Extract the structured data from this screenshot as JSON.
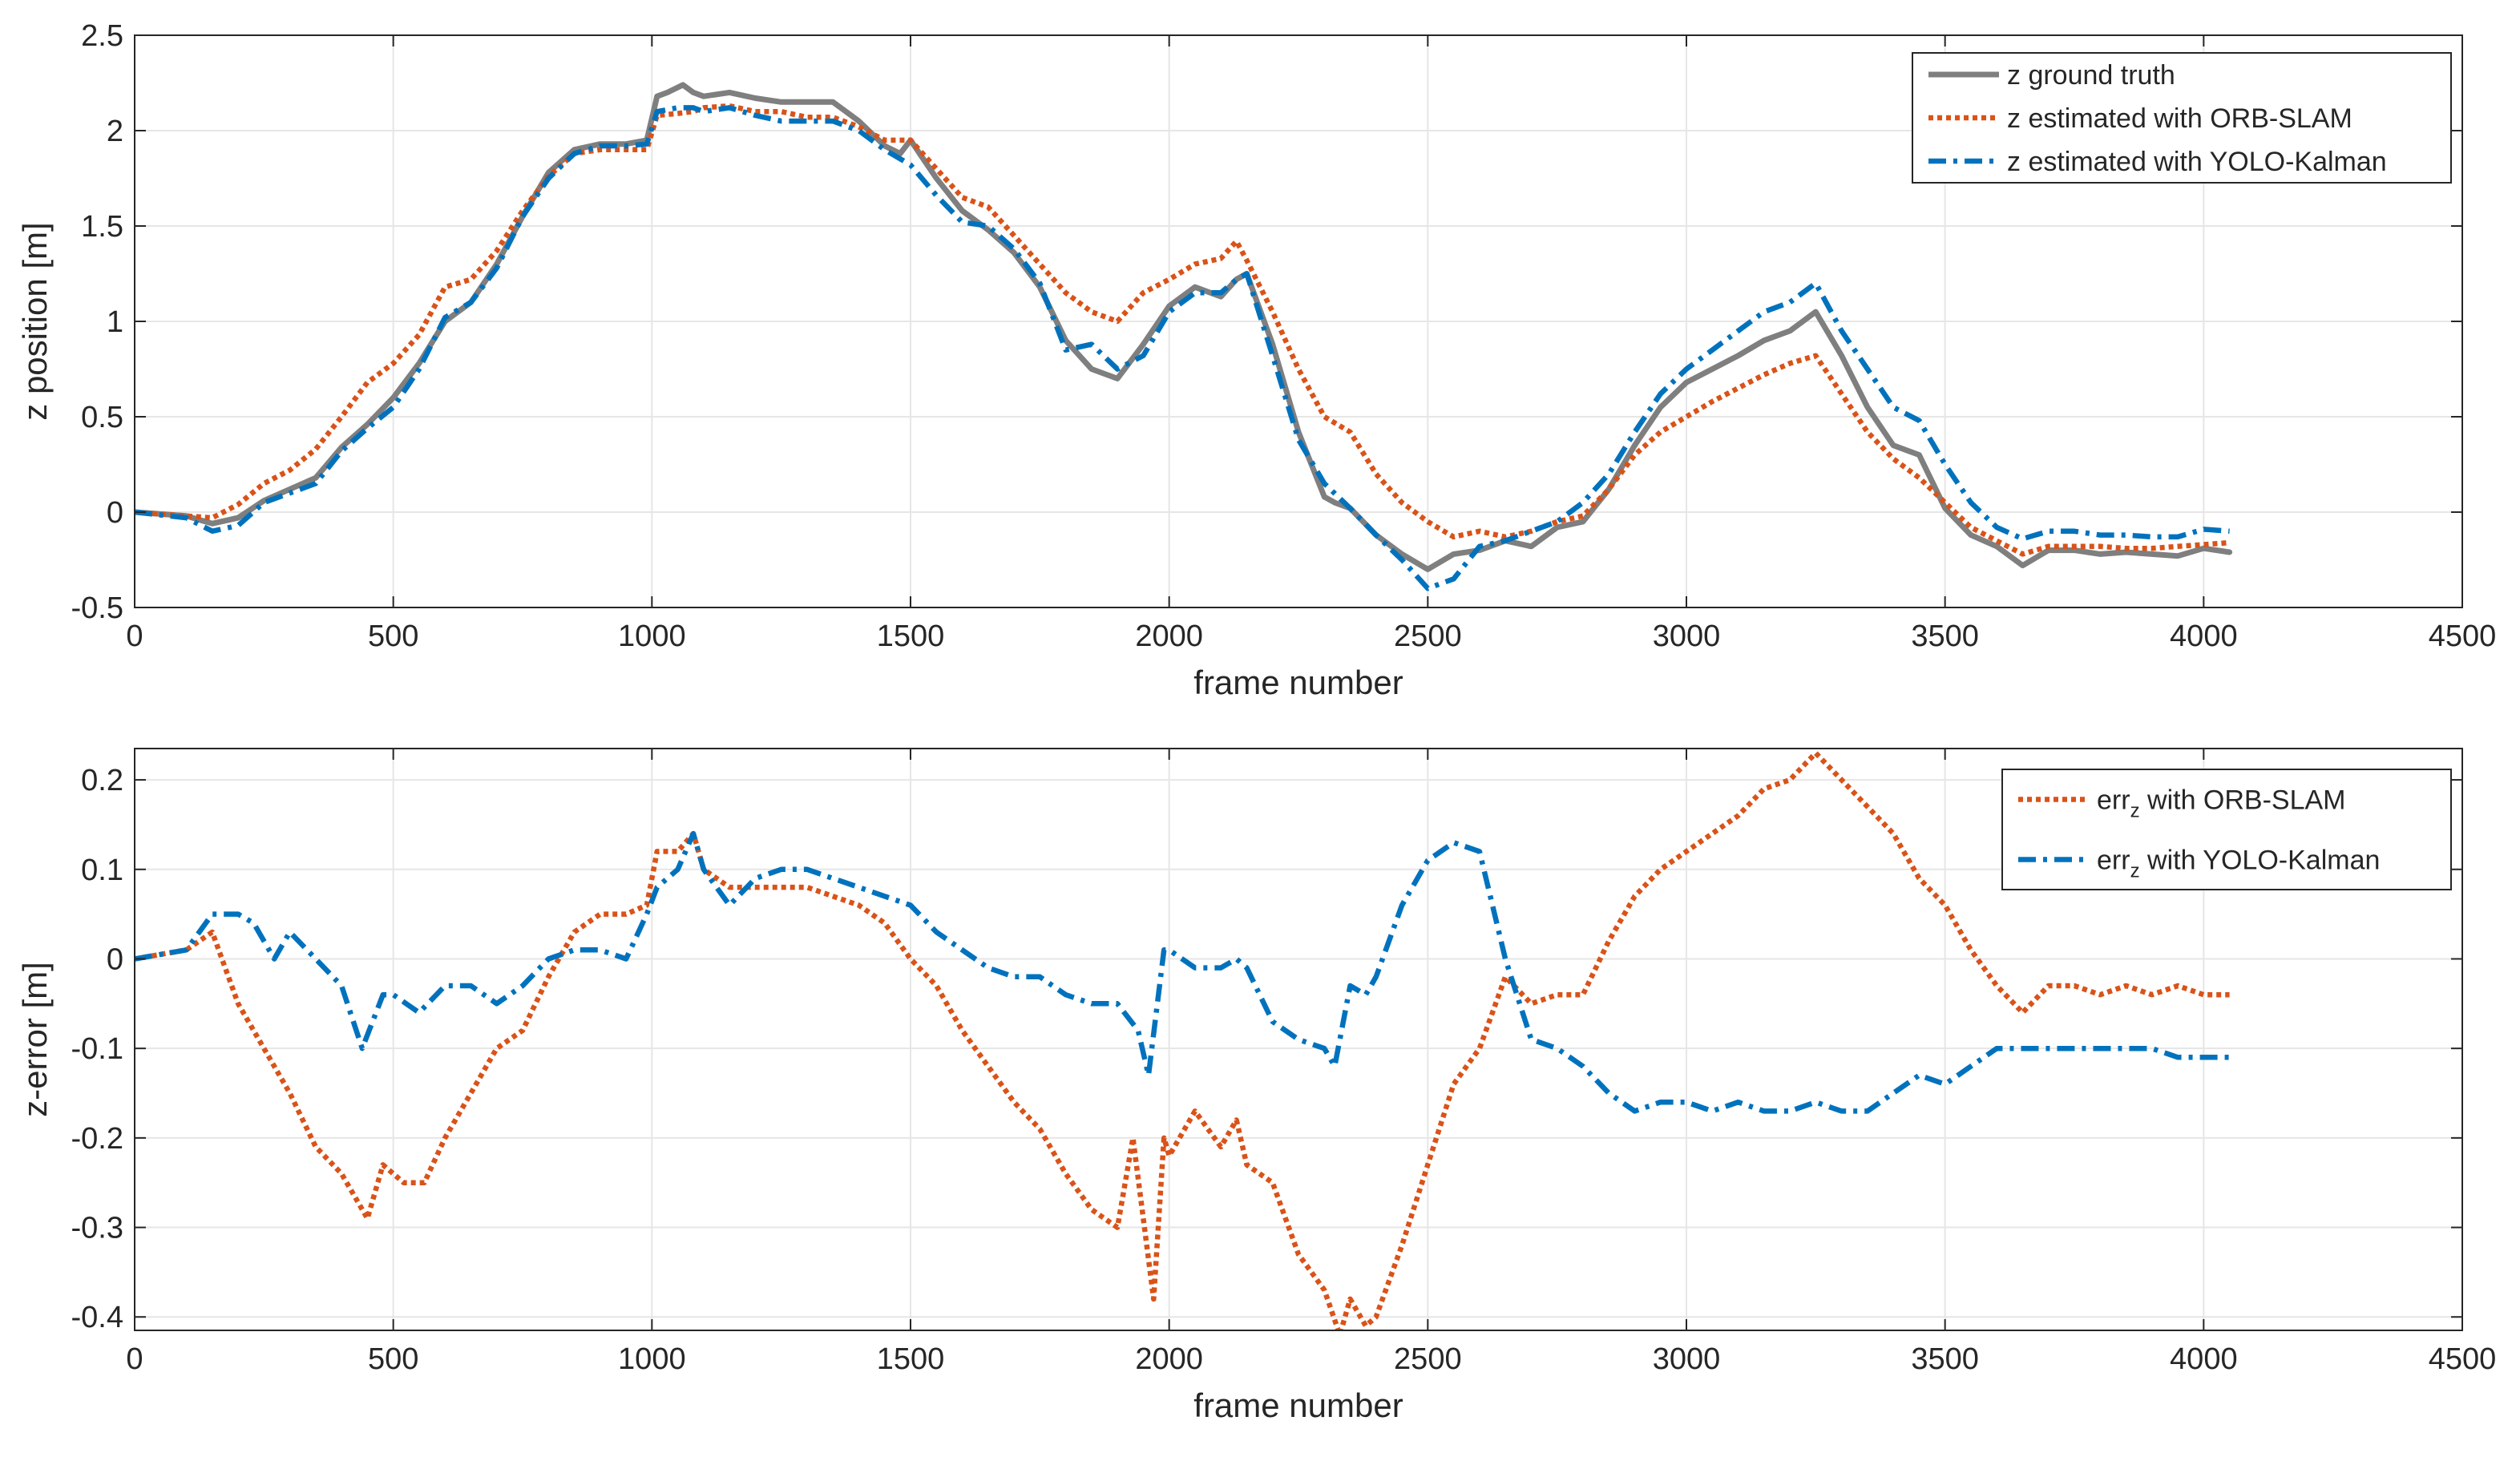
{
  "chart_data": [
    {
      "type": "line",
      "xlabel": "frame number",
      "ylabel": "z position [m]",
      "xlim": [
        0,
        4500
      ],
      "ylim": [
        -0.5,
        2.5
      ],
      "xticks": [
        0,
        500,
        1000,
        1500,
        2000,
        2500,
        3000,
        3500,
        4000,
        4500
      ],
      "yticks": [
        -0.5,
        0,
        0.5,
        1,
        1.5,
        2,
        2.5
      ],
      "grid": true,
      "legend_position": "top-right",
      "series": [
        {
          "name": "z ground truth",
          "color": "#7f7f7f",
          "style": "solid",
          "x": [
            0,
            100,
            150,
            200,
            250,
            300,
            350,
            400,
            450,
            500,
            550,
            600,
            650,
            700,
            750,
            800,
            850,
            900,
            950,
            990,
            1010,
            1030,
            1060,
            1080,
            1100,
            1150,
            1200,
            1250,
            1300,
            1350,
            1400,
            1450,
            1480,
            1500,
            1550,
            1600,
            1650,
            1700,
            1750,
            1800,
            1850,
            1900,
            1950,
            2000,
            2050,
            2100,
            2130,
            2150,
            2200,
            2250,
            2300,
            2320,
            2350,
            2400,
            2450,
            2500,
            2550,
            2600,
            2650,
            2700,
            2750,
            2800,
            2850,
            2900,
            2950,
            3000,
            3050,
            3100,
            3150,
            3200,
            3250,
            3300,
            3350,
            3400,
            3450,
            3500,
            3550,
            3600,
            3650,
            3700,
            3750,
            3800,
            3850,
            3900,
            3950,
            4000,
            4050
          ],
          "values": [
            0,
            -0.02,
            -0.06,
            -0.03,
            0.06,
            0.12,
            0.18,
            0.34,
            0.46,
            0.6,
            0.78,
            1.0,
            1.1,
            1.3,
            1.55,
            1.78,
            1.9,
            1.93,
            1.93,
            1.95,
            2.18,
            2.2,
            2.24,
            2.2,
            2.18,
            2.2,
            2.17,
            2.15,
            2.15,
            2.15,
            2.05,
            1.92,
            1.88,
            1.95,
            1.75,
            1.58,
            1.48,
            1.36,
            1.18,
            0.9,
            0.75,
            0.7,
            0.88,
            1.08,
            1.18,
            1.13,
            1.22,
            1.25,
            0.88,
            0.42,
            0.08,
            0.05,
            0.02,
            -0.12,
            -0.22,
            -0.3,
            -0.22,
            -0.2,
            -0.15,
            -0.18,
            -0.08,
            -0.05,
            0.12,
            0.35,
            0.55,
            0.68,
            0.75,
            0.82,
            0.9,
            0.95,
            1.05,
            0.82,
            0.55,
            0.35,
            0.3,
            0.02,
            -0.12,
            -0.18,
            -0.28,
            -0.2,
            -0.2,
            -0.22,
            -0.21,
            -0.22,
            -0.23,
            -0.19,
            -0.21
          ]
        },
        {
          "name": "z estimated with ORB-SLAM",
          "color": "#d95319",
          "style": "dotted",
          "x": [
            0,
            100,
            150,
            200,
            250,
            300,
            350,
            400,
            450,
            500,
            550,
            600,
            650,
            700,
            750,
            800,
            850,
            900,
            950,
            990,
            1010,
            1050,
            1080,
            1100,
            1150,
            1200,
            1250,
            1300,
            1350,
            1400,
            1450,
            1500,
            1550,
            1600,
            1650,
            1700,
            1750,
            1800,
            1850,
            1900,
            1950,
            2000,
            2050,
            2100,
            2130,
            2150,
            2200,
            2250,
            2300,
            2350,
            2400,
            2450,
            2500,
            2550,
            2600,
            2650,
            2700,
            2750,
            2800,
            2850,
            2900,
            2950,
            3000,
            3050,
            3100,
            3150,
            3200,
            3250,
            3300,
            3350,
            3400,
            3450,
            3500,
            3550,
            3600,
            3650,
            3700,
            3750,
            3800,
            3850,
            3900,
            3950,
            4000,
            4050
          ],
          "values": [
            0,
            -0.02,
            -0.03,
            0.04,
            0.15,
            0.22,
            0.33,
            0.5,
            0.68,
            0.78,
            0.93,
            1.18,
            1.22,
            1.37,
            1.58,
            1.76,
            1.88,
            1.9,
            1.9,
            1.9,
            2.08,
            2.09,
            2.1,
            2.12,
            2.13,
            2.1,
            2.1,
            2.07,
            2.07,
            2.02,
            1.95,
            1.95,
            1.8,
            1.65,
            1.6,
            1.45,
            1.3,
            1.15,
            1.05,
            1.0,
            1.15,
            1.22,
            1.3,
            1.33,
            1.42,
            1.32,
            1.05,
            0.75,
            0.5,
            0.42,
            0.2,
            0.05,
            -0.05,
            -0.13,
            -0.1,
            -0.13,
            -0.1,
            -0.05,
            -0.02,
            0.12,
            0.3,
            0.42,
            0.5,
            0.58,
            0.65,
            0.72,
            0.78,
            0.82,
            0.62,
            0.42,
            0.28,
            0.18,
            0.05,
            -0.08,
            -0.15,
            -0.22,
            -0.18,
            -0.18,
            -0.18,
            -0.19,
            -0.19,
            -0.18,
            -0.17,
            -0.16
          ]
        },
        {
          "name": "z estimated with YOLO-Kalman",
          "color": "#0072bd",
          "style": "dashdot",
          "x": [
            0,
            100,
            150,
            200,
            250,
            300,
            350,
            400,
            450,
            500,
            550,
            600,
            650,
            700,
            750,
            800,
            850,
            900,
            950,
            990,
            1010,
            1050,
            1080,
            1100,
            1150,
            1200,
            1250,
            1300,
            1350,
            1400,
            1450,
            1500,
            1550,
            1600,
            1650,
            1700,
            1750,
            1800,
            1850,
            1900,
            1950,
            2000,
            2050,
            2100,
            2130,
            2150,
            2200,
            2250,
            2300,
            2350,
            2400,
            2450,
            2500,
            2550,
            2600,
            2650,
            2700,
            2750,
            2800,
            2850,
            2900,
            2950,
            3000,
            3050,
            3100,
            3150,
            3200,
            3250,
            3300,
            3350,
            3400,
            3450,
            3500,
            3550,
            3600,
            3650,
            3700,
            3750,
            3800,
            3850,
            3900,
            3950,
            4000,
            4050
          ],
          "values": [
            0,
            -0.03,
            -0.1,
            -0.07,
            0.05,
            0.1,
            0.15,
            0.32,
            0.44,
            0.55,
            0.75,
            1.02,
            1.1,
            1.28,
            1.55,
            1.75,
            1.88,
            1.92,
            1.92,
            1.93,
            2.1,
            2.12,
            2.12,
            2.1,
            2.12,
            2.08,
            2.05,
            2.05,
            2.05,
            2.0,
            1.9,
            1.82,
            1.66,
            1.52,
            1.5,
            1.38,
            1.2,
            0.85,
            0.88,
            0.75,
            0.82,
            1.05,
            1.15,
            1.15,
            1.22,
            1.25,
            0.82,
            0.38,
            0.15,
            0.02,
            -0.12,
            -0.25,
            -0.4,
            -0.35,
            -0.18,
            -0.15,
            -0.1,
            -0.05,
            0.05,
            0.2,
            0.42,
            0.62,
            0.75,
            0.85,
            0.95,
            1.05,
            1.1,
            1.2,
            0.95,
            0.75,
            0.55,
            0.48,
            0.25,
            0.05,
            -0.08,
            -0.14,
            -0.1,
            -0.1,
            -0.12,
            -0.12,
            -0.13,
            -0.13,
            -0.09,
            -0.1
          ]
        }
      ]
    },
    {
      "type": "line",
      "xlabel": "frame number",
      "ylabel": "z-error [m]",
      "xlim": [
        0,
        4500
      ],
      "ylim": [
        -0.415,
        0.235
      ],
      "xticks": [
        0,
        500,
        1000,
        1500,
        2000,
        2500,
        3000,
        3500,
        4000,
        4500
      ],
      "yticks": [
        -0.4,
        -0.3,
        -0.2,
        -0.1,
        0,
        0.1,
        0.2
      ],
      "grid": true,
      "legend_position": "top-right",
      "series": [
        {
          "name": "err",
          "name_subscript": "z",
          "name_suffix": " with ORB-SLAM",
          "color": "#d95319",
          "style": "dotted",
          "x": [
            0,
            100,
            150,
            200,
            250,
            300,
            350,
            400,
            450,
            480,
            520,
            560,
            600,
            650,
            700,
            750,
            800,
            850,
            900,
            950,
            990,
            1010,
            1050,
            1080,
            1100,
            1150,
            1200,
            1250,
            1300,
            1350,
            1400,
            1450,
            1500,
            1550,
            1600,
            1650,
            1700,
            1750,
            1800,
            1850,
            1900,
            1930,
            1970,
            1990,
            2000,
            2050,
            2100,
            2130,
            2150,
            2200,
            2250,
            2300,
            2330,
            2350,
            2380,
            2400,
            2450,
            2500,
            2550,
            2600,
            2650,
            2700,
            2750,
            2800,
            2850,
            2900,
            2950,
            3000,
            3050,
            3100,
            3150,
            3200,
            3250,
            3300,
            3350,
            3400,
            3450,
            3500,
            3550,
            3600,
            3650,
            3700,
            3750,
            3800,
            3850,
            3900,
            3950,
            4000,
            4050
          ],
          "values": [
            0,
            0.01,
            0.03,
            -0.05,
            -0.1,
            -0.15,
            -0.21,
            -0.24,
            -0.29,
            -0.23,
            -0.25,
            -0.25,
            -0.2,
            -0.15,
            -0.1,
            -0.08,
            -0.02,
            0.03,
            0.05,
            0.05,
            0.06,
            0.12,
            0.12,
            0.14,
            0.1,
            0.08,
            0.08,
            0.08,
            0.08,
            0.07,
            0.06,
            0.04,
            0.0,
            -0.03,
            -0.08,
            -0.12,
            -0.16,
            -0.19,
            -0.24,
            -0.28,
            -0.3,
            -0.2,
            -0.38,
            -0.2,
            -0.22,
            -0.17,
            -0.21,
            -0.18,
            -0.23,
            -0.25,
            -0.33,
            -0.37,
            -0.42,
            -0.38,
            -0.41,
            -0.4,
            -0.32,
            -0.23,
            -0.14,
            -0.1,
            -0.02,
            -0.05,
            -0.04,
            -0.04,
            0.02,
            0.07,
            0.1,
            0.12,
            0.14,
            0.16,
            0.19,
            0.2,
            0.23,
            0.2,
            0.17,
            0.14,
            0.09,
            0.06,
            0.01,
            -0.03,
            -0.06,
            -0.03,
            -0.03,
            -0.04,
            -0.03,
            -0.04,
            -0.03,
            -0.04,
            -0.04
          ]
        },
        {
          "name": "err",
          "name_subscript": "z",
          "name_suffix": " with YOLO-Kalman",
          "color": "#0072bd",
          "style": "dashdot",
          "x": [
            0,
            100,
            150,
            200,
            230,
            270,
            300,
            350,
            400,
            440,
            480,
            500,
            550,
            600,
            650,
            700,
            750,
            800,
            850,
            900,
            950,
            990,
            1010,
            1050,
            1080,
            1100,
            1150,
            1200,
            1250,
            1300,
            1350,
            1400,
            1450,
            1500,
            1550,
            1600,
            1650,
            1700,
            1750,
            1800,
            1850,
            1900,
            1940,
            1960,
            1990,
            2000,
            2050,
            2100,
            2130,
            2150,
            2200,
            2250,
            2300,
            2320,
            2350,
            2380,
            2400,
            2450,
            2500,
            2550,
            2600,
            2650,
            2700,
            2750,
            2800,
            2850,
            2900,
            2950,
            3000,
            3050,
            3100,
            3150,
            3200,
            3250,
            3300,
            3350,
            3400,
            3450,
            3500,
            3550,
            3600,
            3650,
            3700,
            3750,
            3800,
            3850,
            3900,
            3950,
            4000,
            4050
          ],
          "values": [
            0,
            0.01,
            0.05,
            0.05,
            0.04,
            0.0,
            0.03,
            0.0,
            -0.03,
            -0.1,
            -0.04,
            -0.04,
            -0.06,
            -0.03,
            -0.03,
            -0.05,
            -0.03,
            0.0,
            0.01,
            0.01,
            0.0,
            0.05,
            0.08,
            0.1,
            0.14,
            0.1,
            0.06,
            0.09,
            0.1,
            0.1,
            0.09,
            0.08,
            0.07,
            0.06,
            0.03,
            0.01,
            -0.01,
            -0.02,
            -0.02,
            -0.04,
            -0.05,
            -0.05,
            -0.08,
            -0.13,
            0.01,
            0.01,
            -0.01,
            -0.01,
            0.0,
            -0.01,
            -0.07,
            -0.09,
            -0.1,
            -0.12,
            -0.03,
            -0.04,
            -0.02,
            0.06,
            0.11,
            0.13,
            0.12,
            0.0,
            -0.09,
            -0.1,
            -0.12,
            -0.15,
            -0.17,
            -0.16,
            -0.16,
            -0.17,
            -0.16,
            -0.17,
            -0.17,
            -0.16,
            -0.17,
            -0.17,
            -0.15,
            -0.13,
            -0.14,
            -0.12,
            -0.1,
            -0.1,
            -0.1,
            -0.1,
            -0.1,
            -0.1,
            -0.1,
            -0.11,
            -0.11,
            -0.11
          ]
        }
      ]
    }
  ]
}
